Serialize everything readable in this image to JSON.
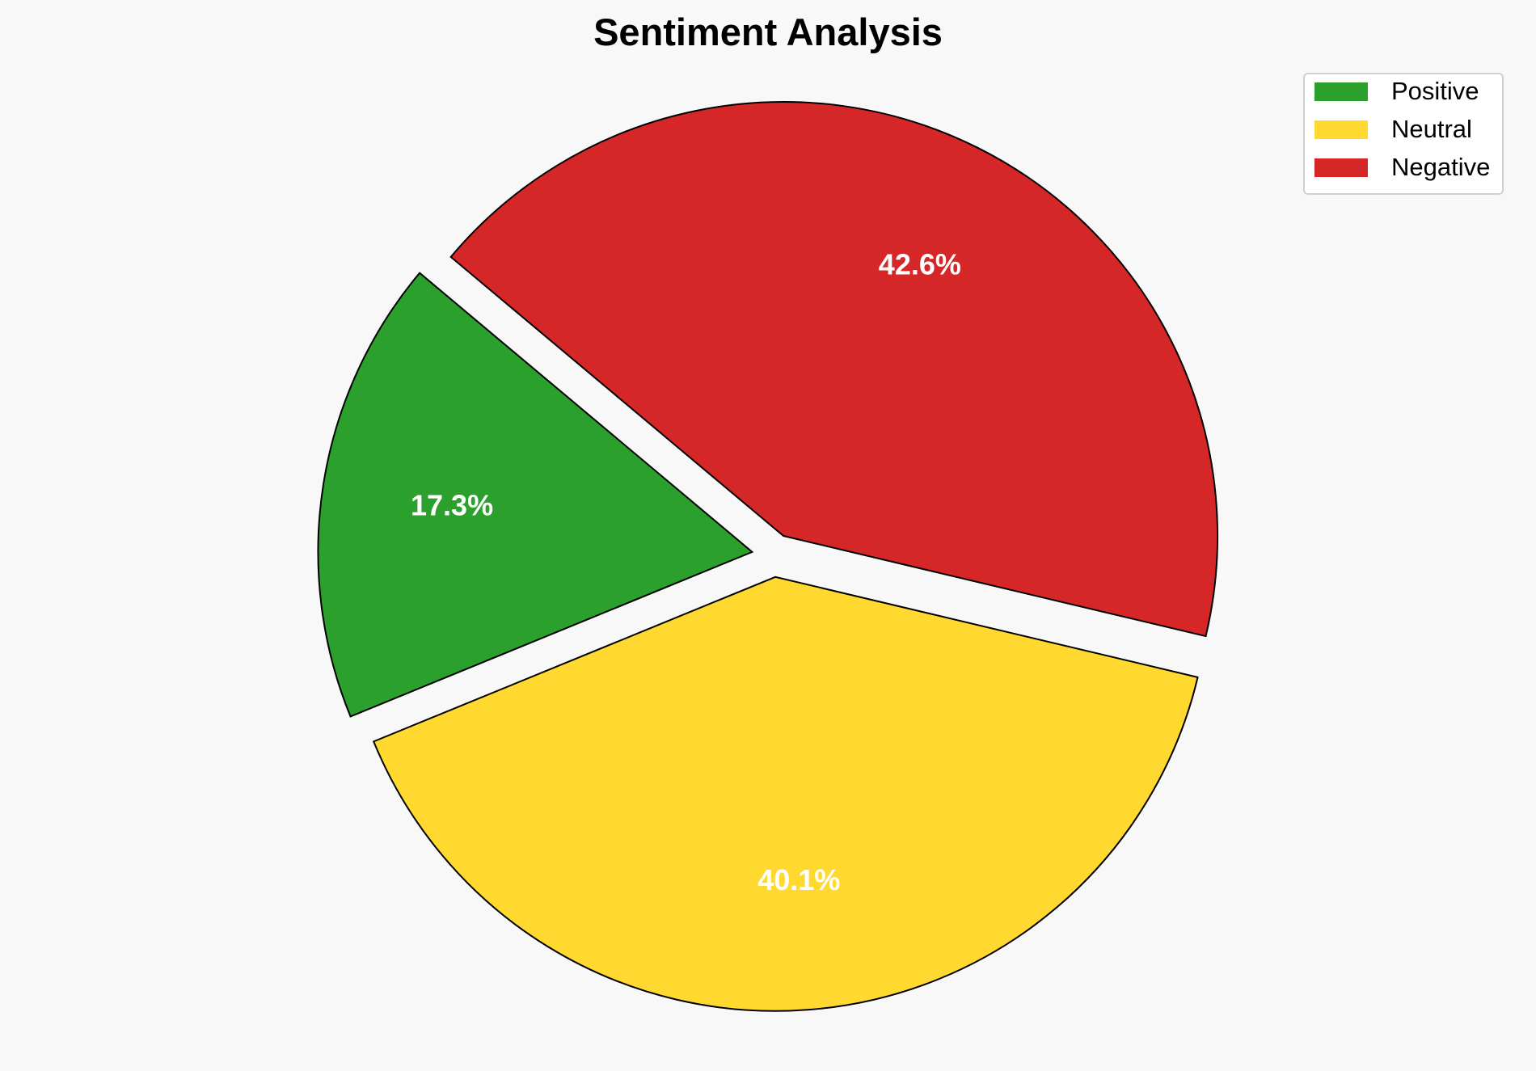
{
  "chart_data": {
    "type": "pie",
    "title": "Sentiment Analysis",
    "labels": [
      "Positive",
      "Neutral",
      "Negative"
    ],
    "values": [
      17.3,
      40.1,
      42.6
    ],
    "pct_labels": [
      "17.3%",
      "40.1%",
      "42.6%"
    ],
    "colors": [
      "#2ca02c",
      "#ffd92f",
      "#d62728"
    ],
    "start_angle_deg": 140,
    "explode": [
      0.05,
      0.05,
      0.05
    ],
    "legend_position": "top-right"
  }
}
